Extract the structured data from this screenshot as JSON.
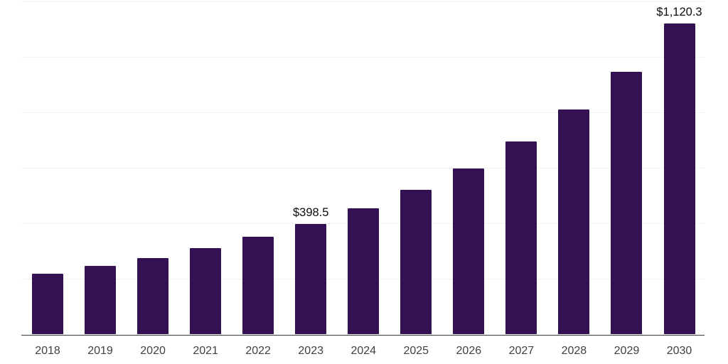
{
  "chart_data": {
    "type": "bar",
    "title": "",
    "xlabel": "",
    "ylabel": "",
    "categories": [
      "2018",
      "2019",
      "2020",
      "2021",
      "2022",
      "2023",
      "2024",
      "2025",
      "2026",
      "2027",
      "2028",
      "2029",
      "2030"
    ],
    "values": [
      220,
      246,
      275,
      311,
      352,
      398.5,
      455,
      521,
      598,
      695,
      811,
      946,
      1120.3
    ],
    "data_labels": {
      "2023": "$398.5",
      "2030": "$1,120.3"
    },
    "ylim": [
      0,
      1200
    ],
    "gridline_step": 200,
    "grid": true,
    "legend": "none",
    "colors": {
      "bar": "#341152",
      "axis_line": "#3a3a3a",
      "gridline": "#f2f2f2",
      "tick_label": "#414141",
      "data_label": "#0d0d0d",
      "background": "#ffffff"
    }
  }
}
